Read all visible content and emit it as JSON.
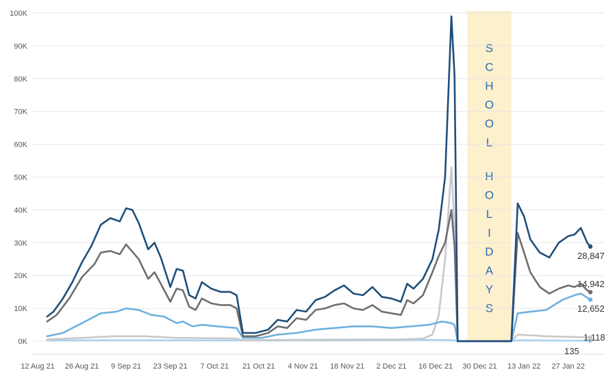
{
  "chart_data": {
    "type": "line",
    "title": "",
    "xlabel": "",
    "ylabel": "",
    "x_tick_labels": [
      "12 Aug 21",
      "26 Aug 21",
      "9 Sep 21",
      "23 Sep 21",
      "7 Oct 21",
      "21 Oct 21",
      "4 Nov 21",
      "18 Nov 21",
      "2 Dec 21",
      "16 Dec 21",
      "30 Dec 21",
      "13 Jan 22",
      "27 Jan 22"
    ],
    "y_tick_labels": [
      "0K",
      "10K",
      "20K",
      "30K",
      "40K",
      "50K",
      "60K",
      "70K",
      "80K",
      "90K",
      "100K"
    ],
    "ylim": [
      0,
      100000
    ],
    "x_start": "2021-08-12",
    "x_end": "2022-02-03",
    "grid": true,
    "legend": "none",
    "annotation": {
      "text": "SCHOOL HOLIDAYS",
      "lines": [
        "SCHOOL",
        "HOLIDAYS"
      ],
      "start": "2021-12-26",
      "end": "2022-01-09",
      "color": "#fdf0cc",
      "text_color": "#2b6cb5"
    },
    "series": [
      {
        "color": "#1f4e79",
        "end_label": "28,847",
        "points": [
          [
            "2021-08-15",
            7500
          ],
          [
            "2021-08-17",
            9000
          ],
          [
            "2021-08-20",
            13000
          ],
          [
            "2021-08-23",
            18000
          ],
          [
            "2021-08-26",
            24000
          ],
          [
            "2021-08-29",
            29000
          ],
          [
            "2021-09-01",
            35500
          ],
          [
            "2021-09-04",
            37500
          ],
          [
            "2021-09-07",
            36500
          ],
          [
            "2021-09-09",
            40500
          ],
          [
            "2021-09-11",
            40000
          ],
          [
            "2021-09-13",
            36000
          ],
          [
            "2021-09-16",
            28000
          ],
          [
            "2021-09-18",
            30000
          ],
          [
            "2021-09-20",
            25500
          ],
          [
            "2021-09-23",
            16500
          ],
          [
            "2021-09-25",
            22000
          ],
          [
            "2021-09-27",
            21500
          ],
          [
            "2021-09-29",
            14000
          ],
          [
            "2021-10-01",
            13000
          ],
          [
            "2021-10-03",
            18000
          ],
          [
            "2021-10-06",
            16000
          ],
          [
            "2021-10-09",
            15000
          ],
          [
            "2021-10-12",
            15000
          ],
          [
            "2021-10-14",
            14000
          ],
          [
            "2021-10-16",
            2500
          ],
          [
            "2021-10-20",
            2500
          ],
          [
            "2021-10-24",
            3500
          ],
          [
            "2021-10-27",
            6500
          ],
          [
            "2021-10-30",
            6000
          ],
          [
            "2021-11-02",
            9500
          ],
          [
            "2021-11-05",
            9000
          ],
          [
            "2021-11-08",
            12500
          ],
          [
            "2021-11-11",
            13500
          ],
          [
            "2021-11-14",
            15500
          ],
          [
            "2021-11-17",
            17000
          ],
          [
            "2021-11-20",
            14500
          ],
          [
            "2021-11-23",
            14000
          ],
          [
            "2021-11-26",
            16500
          ],
          [
            "2021-11-29",
            13500
          ],
          [
            "2021-12-02",
            13000
          ],
          [
            "2021-12-05",
            12000
          ],
          [
            "2021-12-07",
            17500
          ],
          [
            "2021-12-09",
            16000
          ],
          [
            "2021-12-12",
            19000
          ],
          [
            "2021-12-15",
            25000
          ],
          [
            "2021-12-17",
            34000
          ],
          [
            "2021-12-19",
            50000
          ],
          [
            "2021-12-21",
            99000
          ],
          [
            "2021-12-22",
            81000
          ],
          [
            "2021-12-23",
            0
          ],
          [
            "2021-12-25",
            0
          ],
          [
            "2022-01-09",
            0
          ],
          [
            "2022-01-11",
            42000
          ],
          [
            "2022-01-13",
            38000
          ],
          [
            "2022-01-15",
            31000
          ],
          [
            "2022-01-18",
            27000
          ],
          [
            "2022-01-21",
            25500
          ],
          [
            "2022-01-24",
            30000
          ],
          [
            "2022-01-27",
            32000
          ],
          [
            "2022-01-29",
            32500
          ],
          [
            "2022-01-31",
            34500
          ],
          [
            "2022-02-02",
            30000
          ],
          [
            "2022-02-03",
            28847
          ]
        ]
      },
      {
        "color": "#6e6e6e",
        "end_label": "14,942",
        "points": [
          [
            "2021-08-15",
            6000
          ],
          [
            "2021-08-18",
            8000
          ],
          [
            "2021-08-22",
            13000
          ],
          [
            "2021-08-26",
            19500
          ],
          [
            "2021-08-30",
            23500
          ],
          [
            "2021-09-01",
            27000
          ],
          [
            "2021-09-04",
            27500
          ],
          [
            "2021-09-07",
            26500
          ],
          [
            "2021-09-09",
            29500
          ],
          [
            "2021-09-13",
            25000
          ],
          [
            "2021-09-16",
            19000
          ],
          [
            "2021-09-18",
            21000
          ],
          [
            "2021-09-20",
            17500
          ],
          [
            "2021-09-23",
            12000
          ],
          [
            "2021-09-25",
            16000
          ],
          [
            "2021-09-27",
            15500
          ],
          [
            "2021-09-29",
            10500
          ],
          [
            "2021-10-01",
            9500
          ],
          [
            "2021-10-03",
            13000
          ],
          [
            "2021-10-06",
            11500
          ],
          [
            "2021-10-09",
            11000
          ],
          [
            "2021-10-12",
            11000
          ],
          [
            "2021-10-14",
            10000
          ],
          [
            "2021-10-16",
            1500
          ],
          [
            "2021-10-20",
            1500
          ],
          [
            "2021-10-24",
            2500
          ],
          [
            "2021-10-27",
            4500
          ],
          [
            "2021-10-30",
            4000
          ],
          [
            "2021-11-02",
            7000
          ],
          [
            "2021-11-05",
            6500
          ],
          [
            "2021-11-08",
            9500
          ],
          [
            "2021-11-11",
            10000
          ],
          [
            "2021-11-14",
            11000
          ],
          [
            "2021-11-17",
            11500
          ],
          [
            "2021-11-20",
            10000
          ],
          [
            "2021-11-23",
            9500
          ],
          [
            "2021-11-26",
            11000
          ],
          [
            "2021-11-29",
            9000
          ],
          [
            "2021-12-02",
            8500
          ],
          [
            "2021-12-05",
            8000
          ],
          [
            "2021-12-07",
            12500
          ],
          [
            "2021-12-09",
            11500
          ],
          [
            "2021-12-12",
            14000
          ],
          [
            "2021-12-15",
            21000
          ],
          [
            "2021-12-17",
            26000
          ],
          [
            "2021-12-19",
            30000
          ],
          [
            "2021-12-21",
            40000
          ],
          [
            "2021-12-22",
            29000
          ],
          [
            "2021-12-23",
            0
          ],
          [
            "2021-12-25",
            0
          ],
          [
            "2022-01-09",
            0
          ],
          [
            "2022-01-11",
            33000
          ],
          [
            "2022-01-13",
            27000
          ],
          [
            "2022-01-15",
            21000
          ],
          [
            "2022-01-18",
            16500
          ],
          [
            "2022-01-21",
            14500
          ],
          [
            "2022-01-24",
            16000
          ],
          [
            "2022-01-27",
            17000
          ],
          [
            "2022-01-29",
            16500
          ],
          [
            "2022-01-31",
            17500
          ],
          [
            "2022-02-02",
            15500
          ],
          [
            "2022-02-03",
            14942
          ]
        ]
      },
      {
        "color": "#6fb0de",
        "end_label": "12,652",
        "points": [
          [
            "2021-08-15",
            1500
          ],
          [
            "2021-08-20",
            2500
          ],
          [
            "2021-08-26",
            5500
          ],
          [
            "2021-09-01",
            8500
          ],
          [
            "2021-09-06",
            9000
          ],
          [
            "2021-09-09",
            10000
          ],
          [
            "2021-09-13",
            9500
          ],
          [
            "2021-09-17",
            8000
          ],
          [
            "2021-09-21",
            7500
          ],
          [
            "2021-09-25",
            5500
          ],
          [
            "2021-09-27",
            6000
          ],
          [
            "2021-09-30",
            4500
          ],
          [
            "2021-10-03",
            5000
          ],
          [
            "2021-10-08",
            4500
          ],
          [
            "2021-10-14",
            4000
          ],
          [
            "2021-10-16",
            1000
          ],
          [
            "2021-10-22",
            1000
          ],
          [
            "2021-10-27",
            2000
          ],
          [
            "2021-11-02",
            2500
          ],
          [
            "2021-11-08",
            3500
          ],
          [
            "2021-11-14",
            4000
          ],
          [
            "2021-11-20",
            4500
          ],
          [
            "2021-11-26",
            4500
          ],
          [
            "2021-12-02",
            4000
          ],
          [
            "2021-12-08",
            4500
          ],
          [
            "2021-12-14",
            5000
          ],
          [
            "2021-12-18",
            6000
          ],
          [
            "2021-12-21",
            5500
          ],
          [
            "2021-12-22",
            5000
          ],
          [
            "2021-12-23",
            0
          ],
          [
            "2021-12-25",
            0
          ],
          [
            "2022-01-09",
            0
          ],
          [
            "2022-01-11",
            8500
          ],
          [
            "2022-01-15",
            9000
          ],
          [
            "2022-01-20",
            9500
          ],
          [
            "2022-01-25",
            12500
          ],
          [
            "2022-01-29",
            14000
          ],
          [
            "2022-01-31",
            14500
          ],
          [
            "2022-02-03",
            12652
          ]
        ]
      },
      {
        "color": "#c8c8c8",
        "end_label": "1,118",
        "points": [
          [
            "2021-08-15",
            500
          ],
          [
            "2021-08-26",
            1000
          ],
          [
            "2021-09-05",
            1500
          ],
          [
            "2021-09-15",
            1500
          ],
          [
            "2021-09-25",
            1000
          ],
          [
            "2021-10-14",
            800
          ],
          [
            "2021-10-16",
            300
          ],
          [
            "2021-11-01",
            400
          ],
          [
            "2021-11-20",
            500
          ],
          [
            "2021-12-05",
            500
          ],
          [
            "2021-12-12",
            800
          ],
          [
            "2021-12-15",
            2000
          ],
          [
            "2021-12-17",
            8000
          ],
          [
            "2021-12-19",
            25000
          ],
          [
            "2021-12-21",
            53000
          ],
          [
            "2021-12-22",
            35000
          ],
          [
            "2021-12-23",
            0
          ],
          [
            "2021-12-25",
            0
          ],
          [
            "2022-01-09",
            0
          ],
          [
            "2022-01-11",
            2000
          ],
          [
            "2022-01-20",
            1500
          ],
          [
            "2022-02-03",
            1118
          ]
        ]
      },
      {
        "color": "#a9d3ee",
        "end_label": "135",
        "points": [
          [
            "2021-08-15",
            200
          ],
          [
            "2021-09-10",
            300
          ],
          [
            "2021-10-15",
            200
          ],
          [
            "2021-11-15",
            300
          ],
          [
            "2021-12-15",
            400
          ],
          [
            "2021-12-22",
            300
          ],
          [
            "2021-12-23",
            0
          ],
          [
            "2021-12-25",
            0
          ],
          [
            "2022-01-09",
            0
          ],
          [
            "2022-01-11",
            300
          ],
          [
            "2022-02-03",
            135
          ]
        ]
      }
    ]
  }
}
